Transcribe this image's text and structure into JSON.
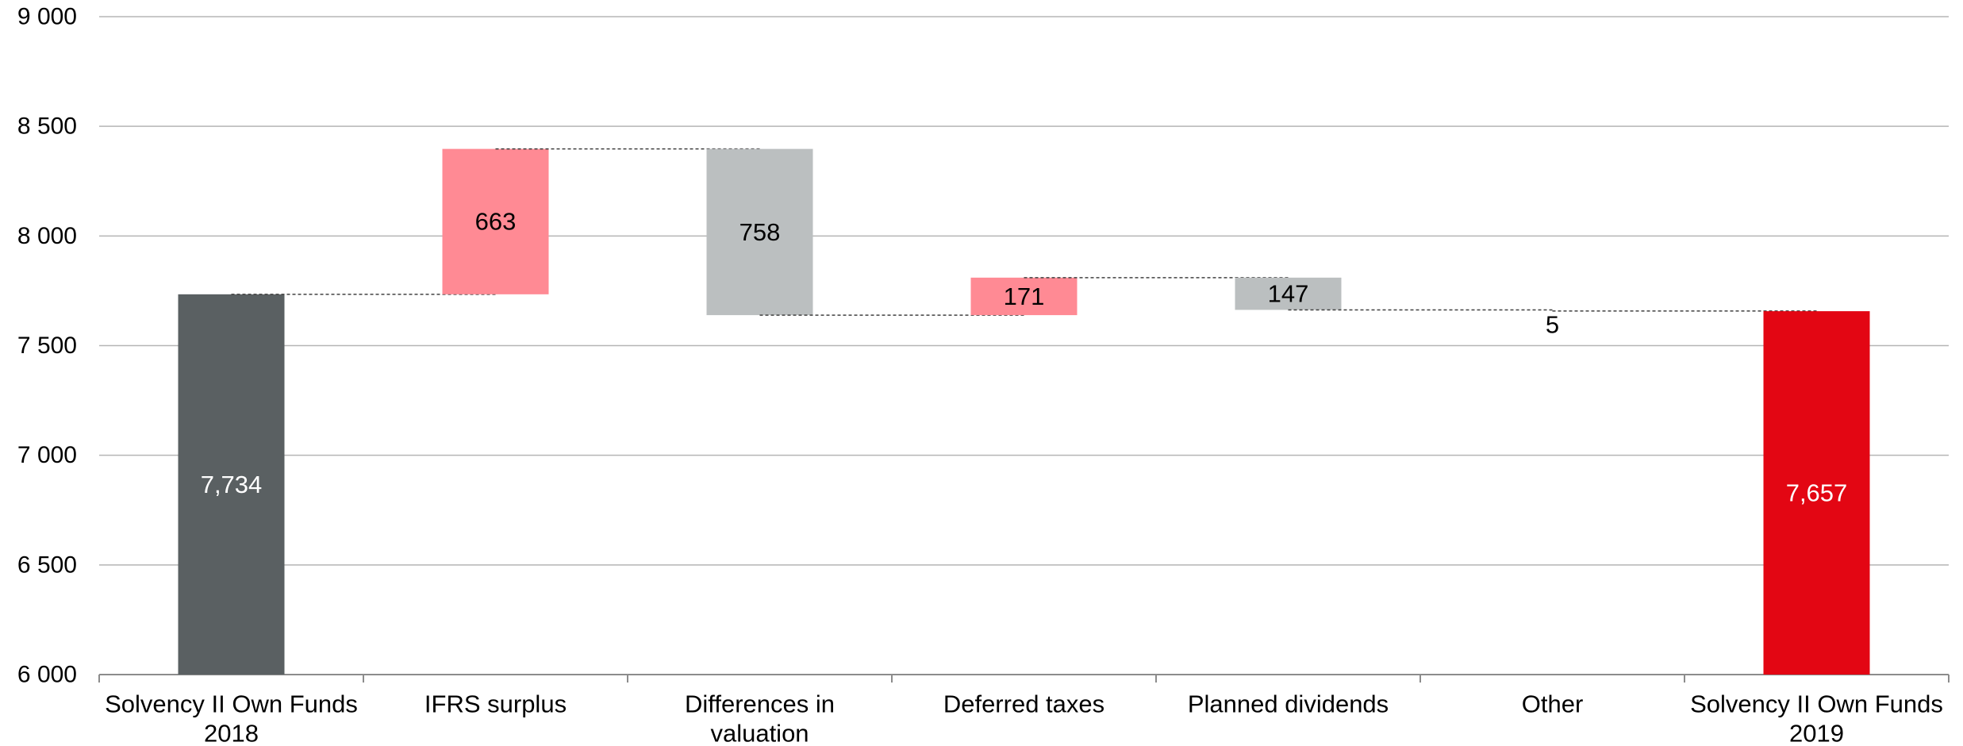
{
  "chart_data": {
    "type": "bar",
    "subtype": "waterfall",
    "title": "",
    "xlabel": "",
    "ylabel": "",
    "ylim": [
      6000,
      9000
    ],
    "yticks": [
      6000,
      6500,
      7000,
      7500,
      8000,
      8500,
      9000
    ],
    "ytick_labels": [
      "6 000",
      "6 500",
      "7 000",
      "7 500",
      "8 000",
      "8 500",
      "9 000"
    ],
    "grid": "horizontal",
    "legend": "none",
    "connectors": "dashed",
    "bars": [
      {
        "category": [
          "Solvency II Own Funds",
          "2018"
        ],
        "kind": "total",
        "start": 6000,
        "end": 7734,
        "label": "7,734",
        "color": "#5a6062",
        "label_color": "#ffffff"
      },
      {
        "category": [
          "IFRS surplus"
        ],
        "kind": "increase",
        "start": 7734,
        "end": 8397,
        "label": "663",
        "color": "#ff8a94",
        "label_color": "#000000"
      },
      {
        "category": [
          "Differences in",
          "valuation"
        ],
        "kind": "decrease",
        "start": 8397,
        "end": 7639,
        "label": "758",
        "color": "#bbbfc0",
        "label_color": "#000000"
      },
      {
        "category": [
          "Deferred taxes"
        ],
        "kind": "increase",
        "start": 7639,
        "end": 7810,
        "label": "171",
        "color": "#ff8a94",
        "label_color": "#000000"
      },
      {
        "category": [
          "Planned dividends"
        ],
        "kind": "decrease",
        "start": 7810,
        "end": 7663,
        "label": "147",
        "color": "#bbbfc0",
        "label_color": "#000000"
      },
      {
        "category": [
          "Other"
        ],
        "kind": "decrease",
        "start": 7663,
        "end": 7658,
        "label": "5",
        "color": "#bbbfc0",
        "label_color": "#000000"
      },
      {
        "category": [
          "Solvency II Own Funds",
          "2019"
        ],
        "kind": "total",
        "start": 6000,
        "end": 7657,
        "label": "7,657",
        "color": "#e30613",
        "label_color": "#ffffff"
      }
    ]
  }
}
